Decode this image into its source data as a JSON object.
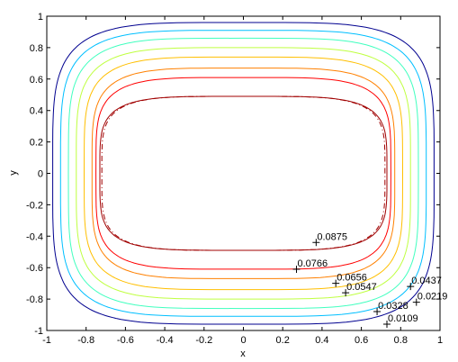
{
  "chart_data": {
    "type": "contour",
    "title": "",
    "xlabel": "x",
    "ylabel": "y",
    "xlim": [
      -1,
      1
    ],
    "ylim": [
      -1,
      1
    ],
    "grid": false,
    "x_ticks": [
      "-1",
      "-0.8",
      "-0.6",
      "-0.4",
      "-0.2",
      "0",
      "0.2",
      "0.4",
      "0.6",
      "0.8",
      "1"
    ],
    "y_ticks": [
      "-1",
      "-0.8",
      "-0.6",
      "-0.4",
      "-0.2",
      "0",
      "0.2",
      "0.4",
      "0.6",
      "0.8",
      "1"
    ],
    "levels": [
      {
        "value": "0.0109",
        "color": "#00008f",
        "half_width": 0.97,
        "half_height": 0.96,
        "label_at": [
          0.73,
          -0.96
        ]
      },
      {
        "value": "0.0219",
        "color": "#00bfff",
        "half_width": 0.93,
        "half_height": 0.91,
        "label_at": [
          0.88,
          -0.82
        ]
      },
      {
        "value": "0.0328",
        "color": "#40ffbf",
        "half_width": 0.89,
        "half_height": 0.86,
        "label_at": [
          0.68,
          -0.88
        ]
      },
      {
        "value": "0.0437",
        "color": "#bfff40",
        "half_width": 0.85,
        "half_height": 0.8,
        "label_at": [
          0.85,
          -0.72
        ]
      },
      {
        "value": "0.0547",
        "color": "#ffbf00",
        "half_width": 0.81,
        "half_height": 0.74,
        "label_at": [
          0.52,
          -0.76
        ]
      },
      {
        "value": "0.0656",
        "color": "#ff8000",
        "half_width": 0.77,
        "half_height": 0.67,
        "label_at": [
          0.47,
          -0.7
        ]
      },
      {
        "value": "0.0766",
        "color": "#ff0000",
        "half_width": 0.75,
        "half_height": 0.61,
        "label_at": [
          0.27,
          -0.61
        ]
      },
      {
        "value": "0.0875",
        "color": "#a00000",
        "half_width": 0.73,
        "half_height": 0.49,
        "label_at": [
          0.37,
          -0.44
        ]
      }
    ],
    "reference_contour": {
      "style": "dash-dot",
      "color": "#a00000",
      "half_width": 0.72,
      "half_height": 0.49
    }
  }
}
